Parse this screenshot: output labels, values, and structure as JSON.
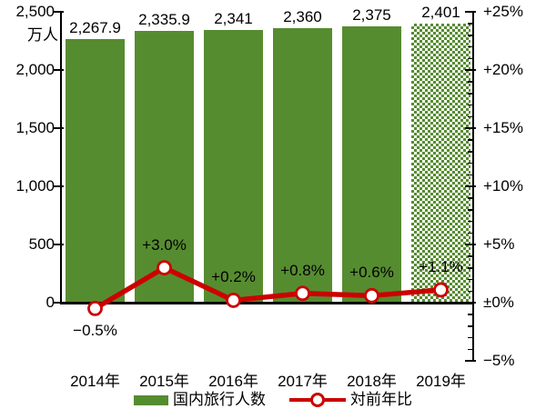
{
  "chart_data": {
    "type": "combo-bar-line",
    "categories": [
      "2014年",
      "2015年",
      "2016年",
      "2017年",
      "2018年",
      "2019年"
    ],
    "series": [
      {
        "name": "国内旅行人数",
        "type": "bar",
        "values": [
          2267.9,
          2335.9,
          2341,
          2360,
          2375,
          2401
        ],
        "value_labels": [
          "2,267.9",
          "2,335.9",
          "2,341",
          "2,360",
          "2,375",
          "2,401"
        ],
        "color": "#568C30",
        "axis": "left",
        "bar_styles": [
          "solid",
          "solid",
          "solid",
          "solid",
          "solid",
          "checker"
        ]
      },
      {
        "name": "対前年比",
        "type": "line",
        "values": [
          -0.5,
          3.0,
          0.2,
          0.8,
          0.6,
          1.1
        ],
        "point_labels": [
          "−0.5%",
          "+3.0%",
          "+0.2%",
          "+0.8%",
          "+0.6%",
          "+1.1%"
        ],
        "color": "#CC0000",
        "marker": "open-circle",
        "axis": "right"
      }
    ],
    "left_axis": {
      "unit": "万人",
      "min": 0,
      "max": 2500,
      "tick_step": 500,
      "tick_labels": [
        "2,500",
        "2,000",
        "1,500",
        "1,000",
        "500",
        "0"
      ]
    },
    "right_axis": {
      "min": -5,
      "max": 25,
      "major_step": 5,
      "minor_step": 1,
      "tick_labels": [
        "+25%",
        "+20%",
        "+15%",
        "+10%",
        "+5%",
        "±0%",
        "−5%"
      ]
    },
    "legend": [
      {
        "label": "国内旅行人数",
        "marker": "bar-swatch",
        "color": "#568C30"
      },
      {
        "label": "対前年比",
        "marker": "line-marker",
        "color": "#CC0000"
      }
    ],
    "grid": "off",
    "legend_position": "bottom-center"
  }
}
